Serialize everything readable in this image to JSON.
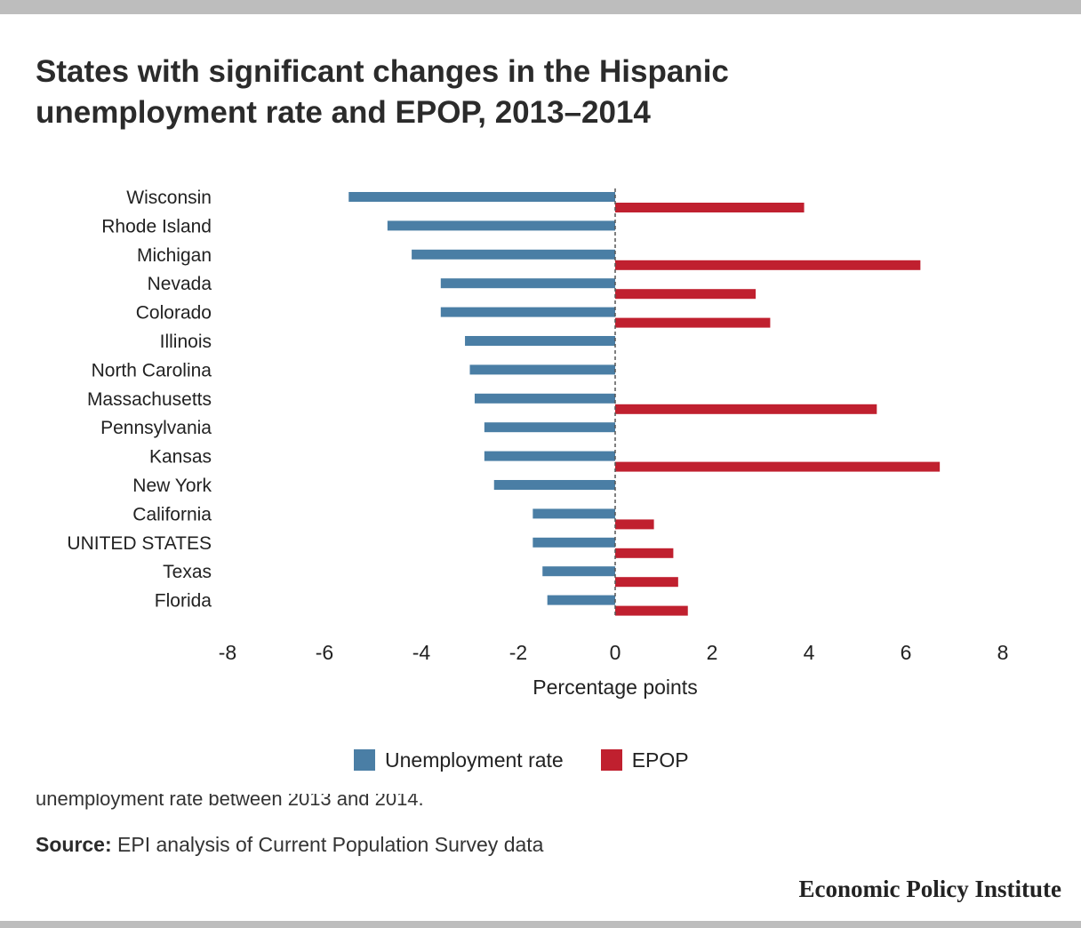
{
  "title": "States with significant changes in the Hispanic\nunemployment rate and EPOP, 2013–2014",
  "chart_data": {
    "type": "bar",
    "orientation": "horizontal",
    "categories": [
      "Wisconsin",
      "Rhode Island",
      "Michigan",
      "Nevada",
      "Colorado",
      "Illinois",
      "North Carolina",
      "Massachusetts",
      "Pennsylvania",
      "Kansas",
      "New York",
      "California",
      "UNITED STATES",
      "Texas",
      "Florida"
    ],
    "series": [
      {
        "name": "Unemployment rate",
        "color": "#4a7ea5",
        "values": [
          -5.5,
          -4.7,
          -4.2,
          -3.6,
          -3.6,
          -3.1,
          -3.0,
          -2.9,
          -2.7,
          -2.7,
          -2.5,
          -1.7,
          -1.7,
          -1.5,
          -1.4
        ]
      },
      {
        "name": "EPOP",
        "color": "#c0202f",
        "values": [
          3.9,
          null,
          6.3,
          2.9,
          3.2,
          null,
          null,
          5.4,
          null,
          6.7,
          null,
          0.8,
          1.2,
          1.3,
          1.5
        ]
      }
    ],
    "xlim": [
      -8,
      8
    ],
    "xticks": [
      "-8",
      "-6",
      "-4",
      "-2",
      "0",
      "2",
      "4",
      "6",
      "8"
    ],
    "xlabel": "Percentage points",
    "grid": false,
    "legend_position": "bottom"
  },
  "note_partial": "unemployment rate between 2013 and 2014.",
  "source_label": "Source:",
  "source_text": " EPI analysis of Current Population Survey data",
  "brand": "Economic Policy Institute"
}
